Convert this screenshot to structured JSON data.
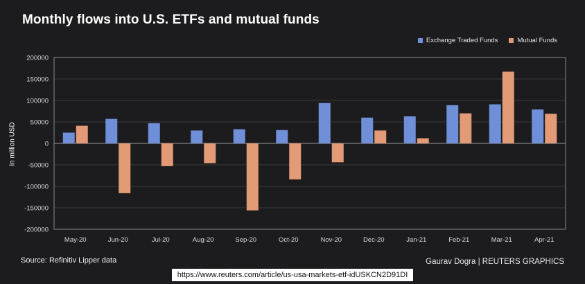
{
  "title": "Monthly flows into U.S. ETFs and mutual funds",
  "source": "Source: Refinitiv Lipper data",
  "credit": "Gaurav Dogra | REUTERS GRAPHICS",
  "url": "https://www.reuters.com/article/us-usa-markets-etf-idUSKCN2D91DI",
  "colors": {
    "background": "#1c1c1e",
    "etf": "#6f8fd8",
    "mutual": "#e39a76",
    "text": "#ffffff",
    "axis_text": "#d8d8d8",
    "gridline": "#3a3a3c",
    "frame": "#8a8a8a"
  },
  "chart_data": {
    "type": "bar",
    "title": "Monthly flows into U.S. ETFs and mutual funds",
    "xlabel": "",
    "ylabel": "In million USD",
    "ylim": [
      -200000,
      200000
    ],
    "yticks": [
      200000,
      150000,
      100000,
      50000,
      0,
      -50000,
      -100000,
      -150000,
      -200000
    ],
    "ytick_labels": [
      "200000",
      "150000",
      "100000",
      "50000",
      "0",
      "-50000",
      "-100000",
      "-150000",
      "-200000"
    ],
    "categories": [
      "May-20",
      "Jun-20",
      "Jul-20",
      "Aug-20",
      "Sep-20",
      "Oct-20",
      "Nov-20",
      "Dec-20",
      "Jan-21",
      "Feb-21",
      "Mar-21",
      "Apr-21"
    ],
    "series": [
      {
        "name": "Exchange Traded Funds",
        "color": "#6f8fd8",
        "values": [
          25000,
          57000,
          47000,
          30000,
          33000,
          31000,
          94000,
          60000,
          63000,
          89000,
          91000,
          79000
        ]
      },
      {
        "name": "Mutual Funds",
        "color": "#e39a76",
        "values": [
          41000,
          -116000,
          -53000,
          -46000,
          -156000,
          -84000,
          -44000,
          30000,
          12000,
          70000,
          167000,
          69000
        ]
      }
    ],
    "legend": "top-right",
    "grid": true
  }
}
